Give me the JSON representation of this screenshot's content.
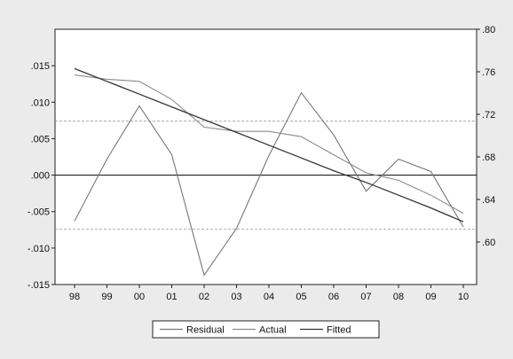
{
  "chart_data": {
    "type": "line",
    "title": "",
    "xlabel": "",
    "ylabel": "",
    "categories": [
      "98",
      "99",
      "00",
      "01",
      "02",
      "03",
      "04",
      "05",
      "06",
      "07",
      "08",
      "09",
      "10"
    ],
    "left_axis": {
      "range": [
        -0.015,
        0.02
      ],
      "tick_values": [
        -0.015,
        -0.01,
        -0.005,
        0.0,
        0.005,
        0.01,
        0.015
      ],
      "tick_labels": [
        "-.015",
        "-.010",
        "-.005",
        ".000",
        ".005",
        ".010",
        ".015"
      ]
    },
    "right_axis": {
      "range": [
        0.56,
        0.8
      ],
      "tick_values": [
        0.6,
        0.64,
        0.68,
        0.72,
        0.76,
        0.8
      ],
      "tick_labels": [
        ".60",
        ".64",
        ".68",
        ".72",
        ".76",
        ".80"
      ]
    },
    "reference_lines": [
      {
        "axis": "left",
        "value": 0.0,
        "style": "solid"
      },
      {
        "axis": "left",
        "value": 0.0074,
        "style": "dashed"
      },
      {
        "axis": "left",
        "value": -0.0074,
        "style": "dashed"
      }
    ],
    "series": [
      {
        "name": "Residual",
        "axis": "left",
        "color": "#777777",
        "values": [
          -0.0063,
          0.0022,
          0.0095,
          0.0028,
          -0.0137,
          -0.0073,
          0.0027,
          0.0113,
          0.0055,
          -0.0022,
          0.0022,
          0.0005,
          -0.0071
        ]
      },
      {
        "name": "Actual",
        "axis": "right",
        "color": "#8a8a8a",
        "values": [
          0.757,
          0.753,
          0.751,
          0.734,
          0.708,
          0.704,
          0.704,
          0.699,
          0.682,
          0.665,
          0.658,
          0.644,
          0.627
        ]
      },
      {
        "name": "Fitted",
        "axis": "right",
        "color": "#333333",
        "values": [
          0.763,
          0.751,
          0.739,
          0.727,
          0.715,
          0.703,
          0.691,
          0.679,
          0.667,
          0.656,
          0.644,
          0.632,
          0.619
        ]
      }
    ],
    "legend": {
      "position": "bottom-center",
      "entries": [
        "Residual",
        "Actual",
        "Fitted"
      ]
    },
    "grid": false
  }
}
